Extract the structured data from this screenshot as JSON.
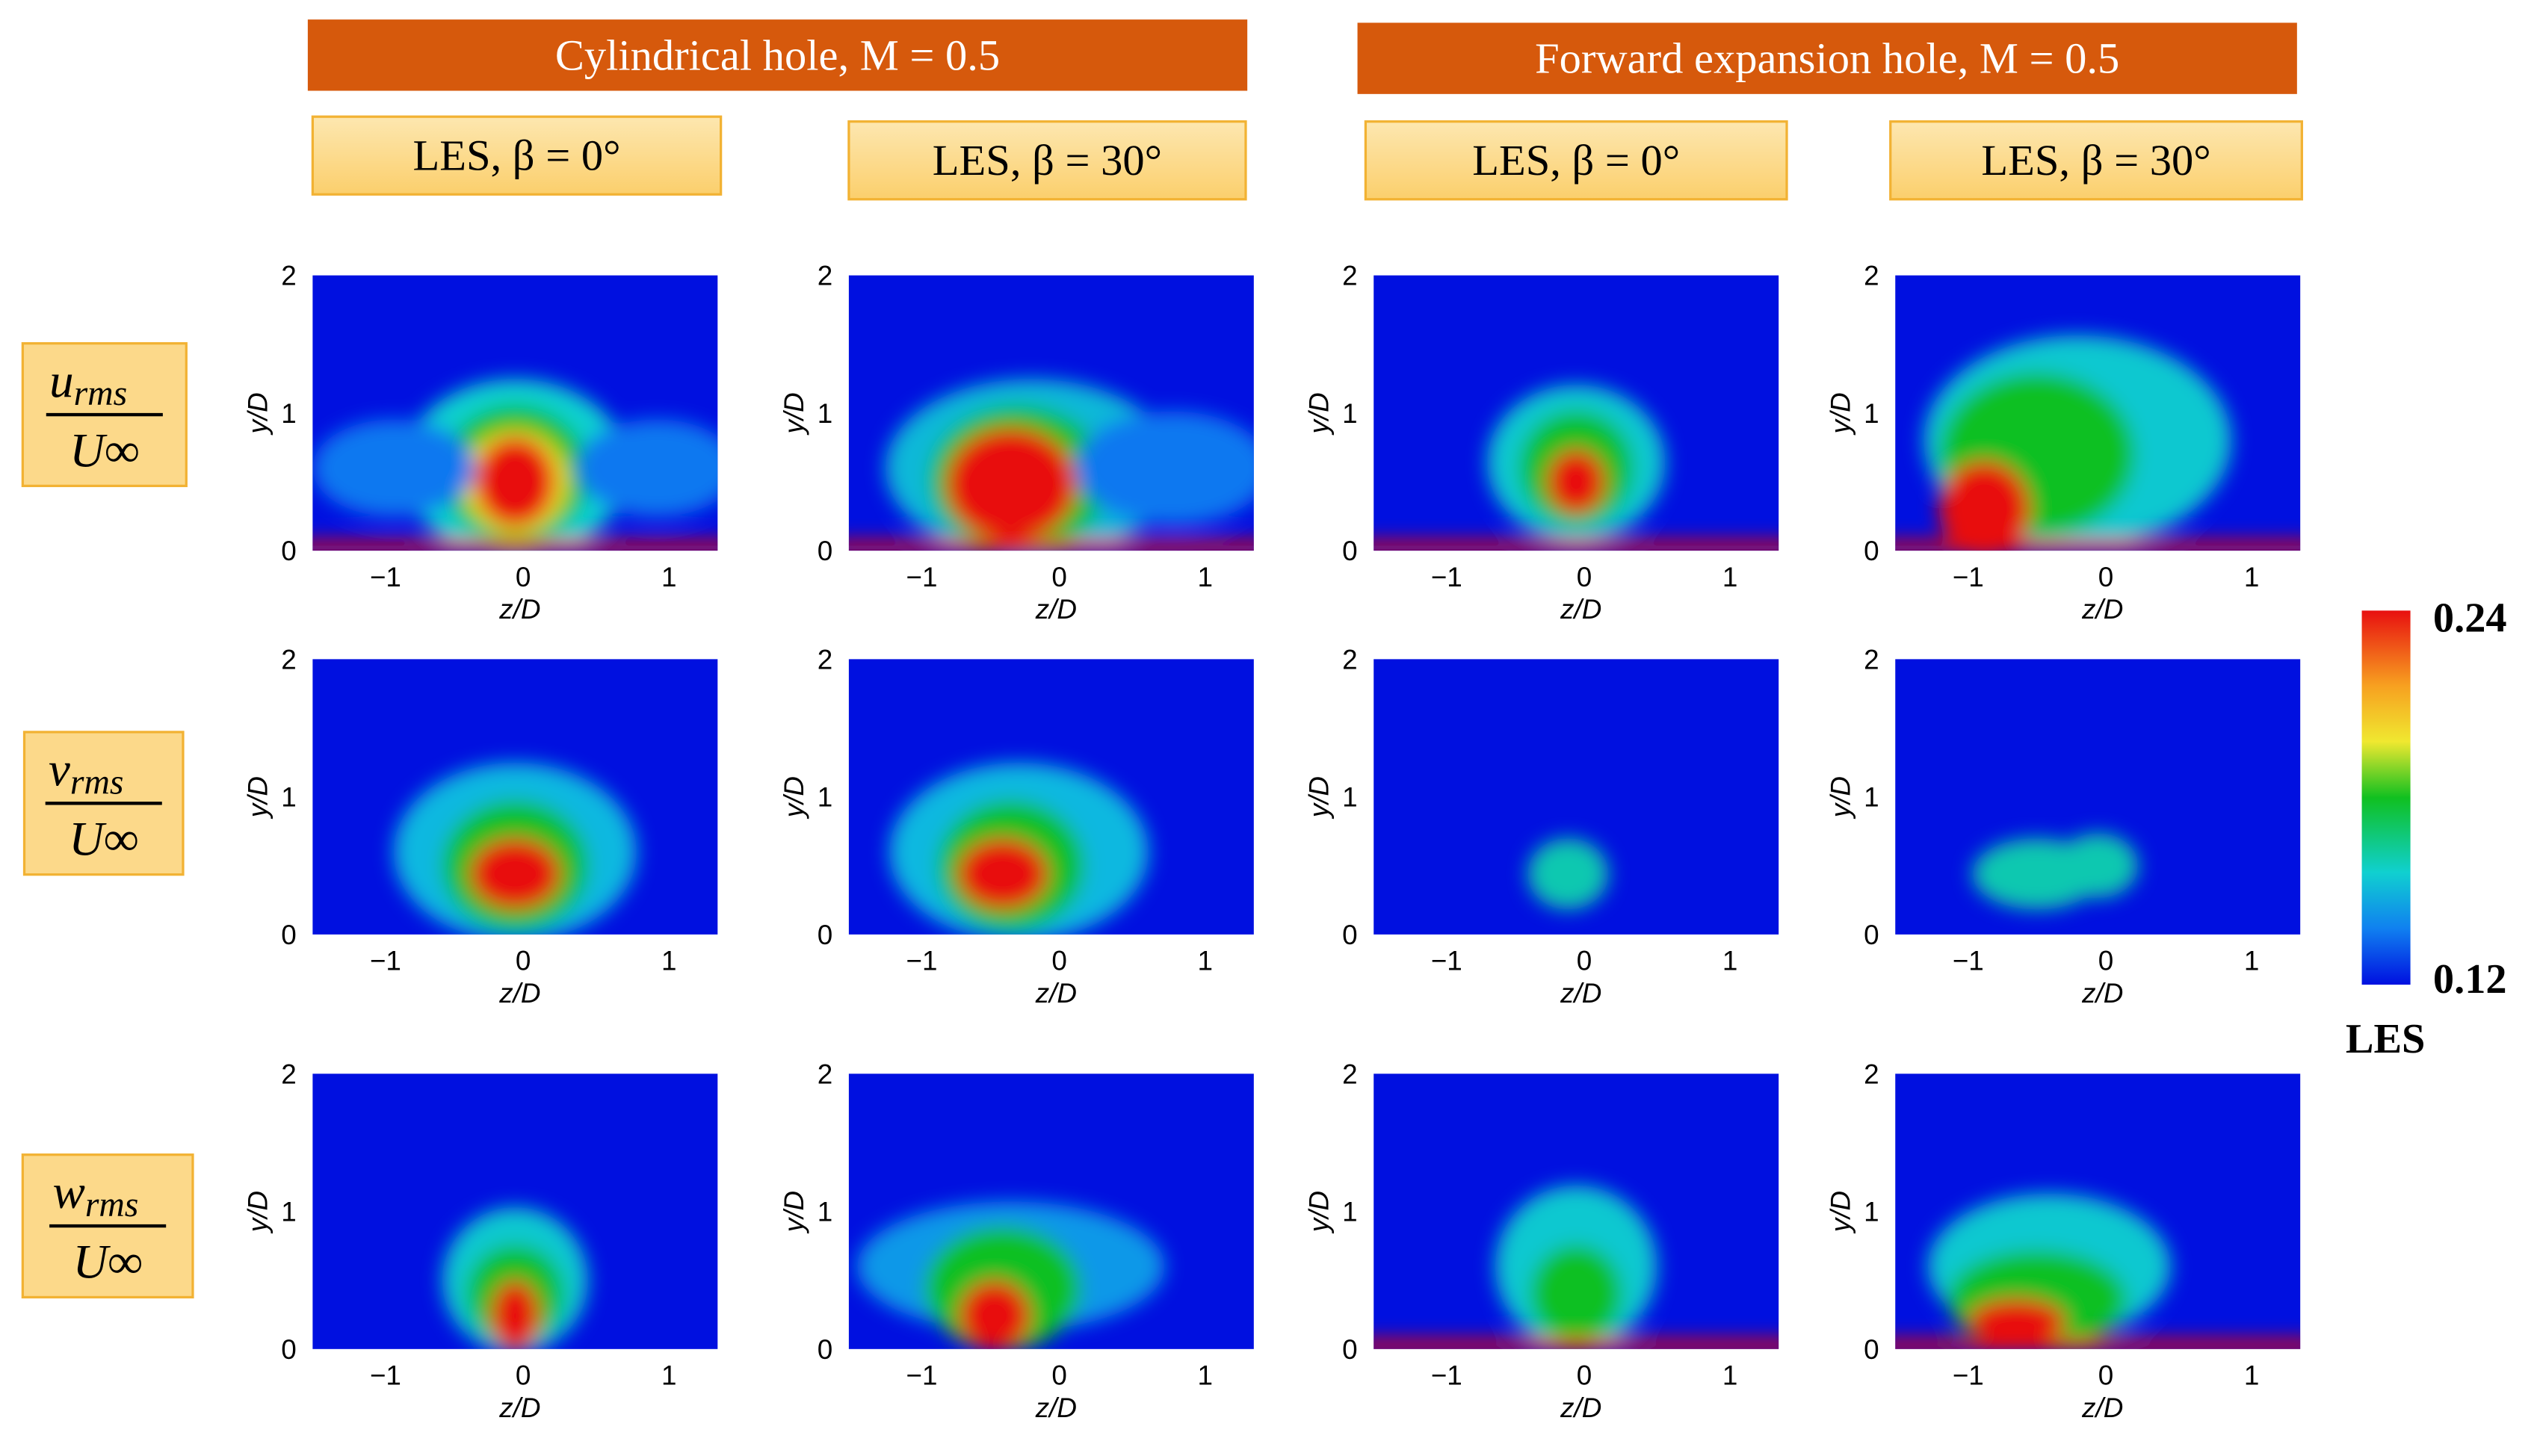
{
  "groups": [
    {
      "title": "Cylindrical hole, M = 0.5"
    },
    {
      "title": "Forward expansion hole, M = 0.5"
    }
  ],
  "columns": [
    "LES, β = 0°",
    "LES, β = 30°",
    "LES, β = 0°",
    "LES, β = 30°"
  ],
  "rows": [
    {
      "numerator": "u",
      "sub": "rms",
      "denominator": "U∞"
    },
    {
      "numerator": "v",
      "sub": "rms",
      "denominator": "U∞"
    },
    {
      "numerator": "w",
      "sub": "rms",
      "denominator": "U∞"
    }
  ],
  "axes": {
    "x_label": "z/D",
    "y_label": "y/D",
    "x_ticks": [
      "−1",
      "0",
      "1"
    ],
    "y_ticks": [
      "0",
      "1",
      "2"
    ]
  },
  "colorbar": {
    "max": "0.24",
    "min": "0.12",
    "label": "LES"
  }
}
